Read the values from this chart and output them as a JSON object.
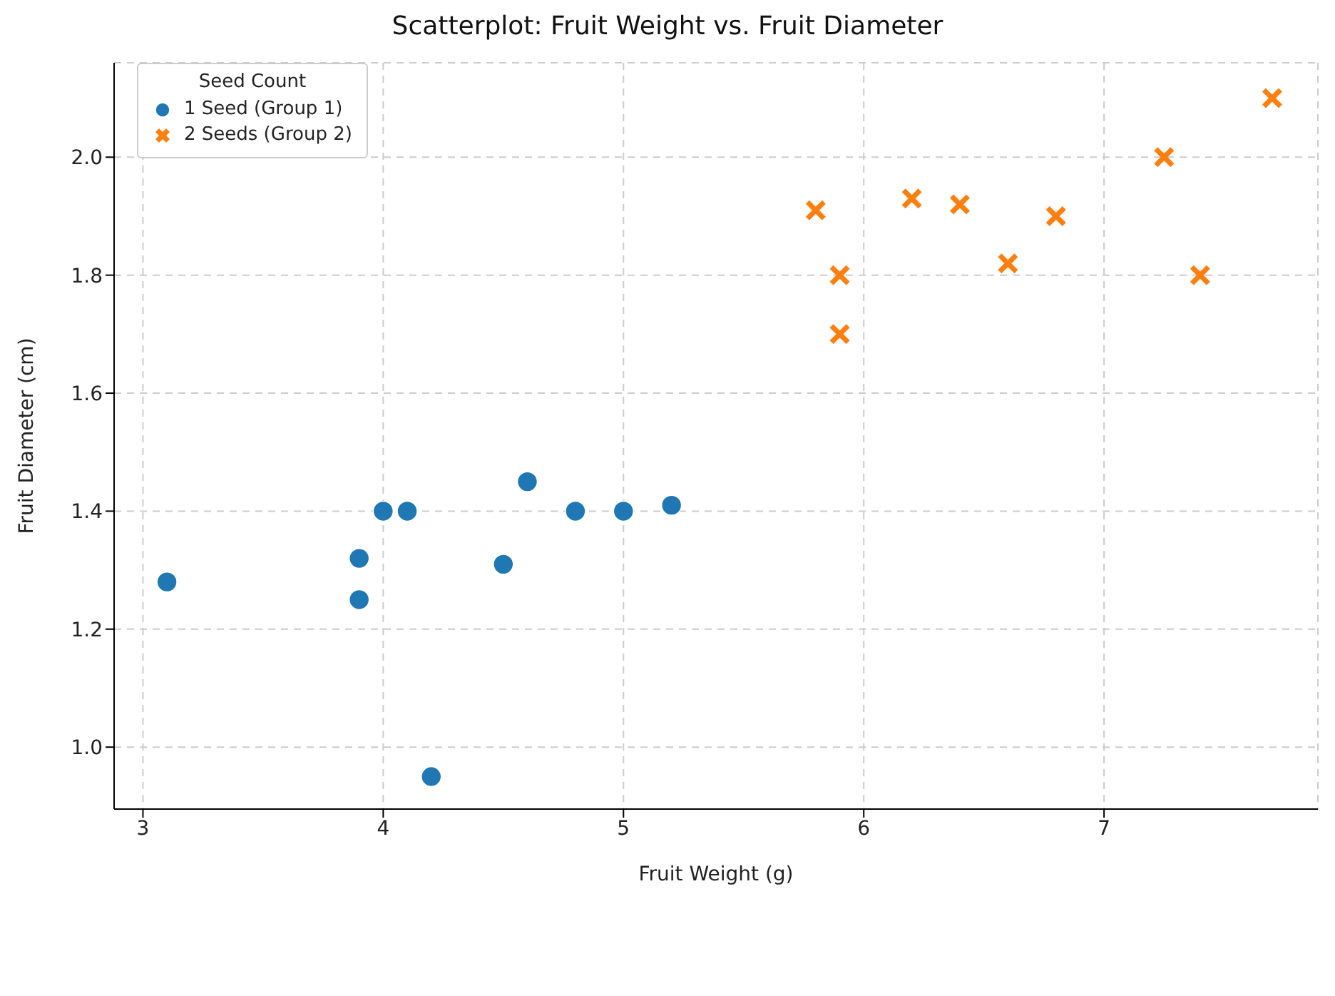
{
  "chart_data": {
    "type": "scatter",
    "title": "Scatterplot: Fruit Weight vs. Fruit Diameter",
    "xlabel": "Fruit Weight (g)",
    "ylabel": "Fruit Diameter (cm)",
    "legend_title": "Seed Count",
    "legend": "top left",
    "grid": true,
    "xlim": [
      2.88,
      7.89
    ],
    "xticks": [
      3,
      4,
      5,
      6,
      7
    ],
    "ylim": [
      0.895,
      2.16
    ],
    "yticks": [
      {
        "value": 1,
        "label": "1.0"
      },
      1.2,
      1.4,
      1.6,
      1.8,
      {
        "value": 2,
        "label": "2.0"
      }
    ],
    "series": [
      {
        "name": "1 Seed (Group 1)",
        "color": "#1f77b4",
        "marker": "circle",
        "x": [
          3.1,
          3.9,
          3.9,
          4.0,
          4.1,
          4.2,
          4.5,
          4.6,
          4.8,
          5.0,
          5.2
        ],
        "values": [
          1.28,
          1.32,
          1.25,
          1.4,
          1.4,
          0.95,
          1.31,
          1.45,
          1.4,
          1.4,
          1.41
        ]
      },
      {
        "name": "2 Seeds (Group 2)",
        "color": "#ff7f0e",
        "marker": "cross",
        "x": [
          5.8,
          5.9,
          5.9,
          6.2,
          6.4,
          6.6,
          6.8,
          7.25,
          7.4,
          7.7
        ],
        "values": [
          1.91,
          1.8,
          1.7,
          1.93,
          1.92,
          1.82,
          1.9,
          2.0,
          1.8,
          2.1
        ]
      }
    ]
  }
}
